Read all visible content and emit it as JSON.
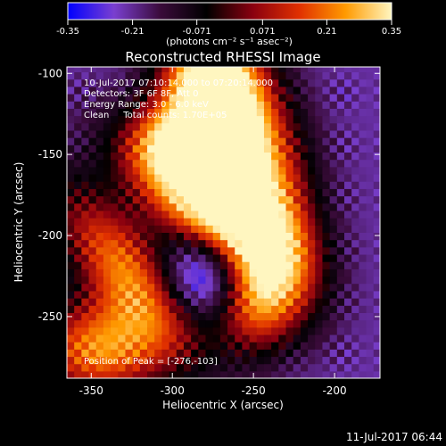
{
  "colorbar": {
    "tick_labels": [
      "-0.35",
      "-0.21",
      "-0.071",
      "0.071",
      "0.21",
      "0.35"
    ],
    "ticks": [
      -0.35,
      -0.21,
      -0.071,
      0.071,
      0.21,
      0.35
    ],
    "range": [
      -0.35,
      0.35
    ],
    "unit_label": "(photons cm⁻² s⁻¹ asec⁻²)"
  },
  "chart_data": {
    "type": "heatmap",
    "title": "Reconstructed RHESSI Image",
    "xlabel": "Heliocentric X (arcsec)",
    "ylabel": "Heliocentric Y (arcsec)",
    "xlim": [
      -365,
      -172
    ],
    "ylim": [
      -288,
      -96
    ],
    "x_ticks": [
      -350,
      -300,
      -250,
      -200
    ],
    "y_ticks": [
      -250,
      -200,
      -150,
      -100
    ],
    "x_tick_labels": [
      "-350",
      "-300",
      "-250",
      "-200"
    ],
    "y_tick_labels": [
      "-250",
      "-200",
      "-150",
      "-100"
    ],
    "annotations": [
      "10-Jul-2017 07:10:14.000 to 07:20:14.000",
      "Detectors: 3F 6F 8F, Att 0",
      "Energy Range: 3.0 - 6.0 keV",
      "Clean     Total counts: 1.70E+05"
    ],
    "peak_label": "Position of Peak = [-276,-103]",
    "peak": [
      -276,
      -103
    ],
    "color_scale": {
      "stops": [
        "#0000ff",
        "#7a3fd0",
        "#3a0b3a",
        "#000000",
        "#8a0010",
        "#e03000",
        "#ff9a00",
        "#fff6c0"
      ]
    }
  },
  "footer": {
    "timestamp": "11-Jul-2017 06:44"
  }
}
